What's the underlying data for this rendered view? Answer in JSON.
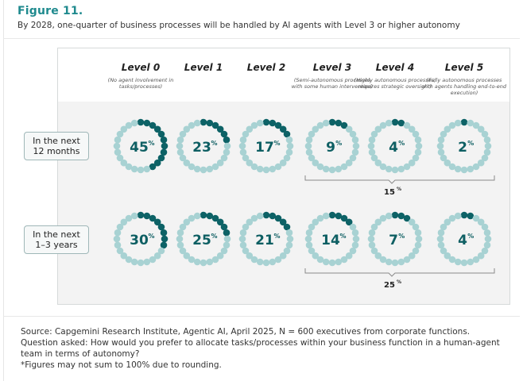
{
  "header": {
    "figure_label": "Figure 11.",
    "subtitle": "By 2028, one-quarter of business processes will be handled by AI agents with Level 3 or higher autonomy"
  },
  "chart_data": {
    "type": "dot-ring",
    "title": "Figure 11.",
    "subtitle": "By 2028, one-quarter of business processes will be handled by AI agents with Level 3 or higher autonomy",
    "dots_per_ring": 24,
    "colors": {
      "filled": "#0d6266",
      "empty": "#a8d2d3",
      "text": "#0e5f63",
      "band": "#f3f3f3"
    },
    "categories": [
      {
        "name": "Level 0",
        "description": "(No agent involvement in tasks/processes)"
      },
      {
        "name": "Level 1",
        "description": ""
      },
      {
        "name": "Level 2",
        "description": ""
      },
      {
        "name": "Level 3",
        "description": "(Semi-autonomous processes with some human intervention)"
      },
      {
        "name": "Level 4",
        "description": "(Highly autonomous processes; requires strategic oversight)"
      },
      {
        "name": "Level 5",
        "description": "(Fully autonomous processes with agents handling end-to-end execution)"
      }
    ],
    "series": [
      {
        "name": "In the next 12 months",
        "values": [
          45,
          23,
          17,
          9,
          4,
          2
        ],
        "filled_dots": [
          11,
          6,
          5,
          3,
          2,
          1
        ],
        "bracket": {
          "from_level": 3,
          "to_level": 5,
          "label": "15",
          "unit": "%"
        }
      },
      {
        "name": "In the next 1–3 years",
        "values": [
          30,
          25,
          21,
          14,
          7,
          4
        ],
        "filled_dots": [
          8,
          6,
          5,
          4,
          3,
          2
        ],
        "bracket": {
          "from_level": 3,
          "to_level": 5,
          "label": "25",
          "unit": "%"
        }
      }
    ],
    "unit": "%"
  },
  "rows": [
    {
      "label_line1": "In the next",
      "label_line2": "12 months"
    },
    {
      "label_line1": "In the next",
      "label_line2": "1–3 years"
    }
  ],
  "footer": {
    "source": "Source: Capgemini Research Institute, Agentic AI, April 2025, N = 600 executives from corporate functions.",
    "question": "Question asked: How would you prefer to allocate tasks/processes within your business function in a human-agent team in terms of autonomy?",
    "note": "*Figures may not sum to 100% due to rounding."
  }
}
